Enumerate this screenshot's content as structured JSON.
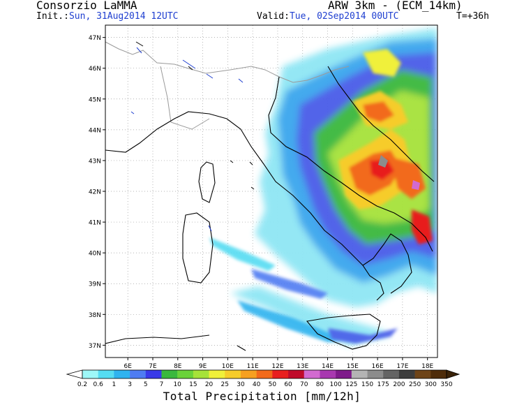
{
  "header": {
    "org": "Consorzio LaMMA",
    "model": "ARW 3km - (ECM_14km)",
    "init_label": "Init.:",
    "init_value": "Sun, 31Aug2014 12UTC",
    "valid_label": "Valid:",
    "valid_value": "Tue, 02Sep2014 00UTC",
    "forecast_step": "T=+36h"
  },
  "map": {
    "lat_labels": [
      "47N",
      "46N",
      "45N",
      "44N",
      "43N",
      "42N",
      "41N",
      "40N",
      "39N",
      "38N",
      "37N"
    ],
    "lon_labels": [
      "6E",
      "7E",
      "8E",
      "9E",
      "10E",
      "11E",
      "12E",
      "13E",
      "14E",
      "15E",
      "16E",
      "17E",
      "18E"
    ],
    "lat_range": [
      36.6,
      47.4
    ],
    "lon_range": [
      5.1,
      18.4
    ],
    "grid": "dotted",
    "background_color": "#ffffff",
    "coast_color": "#000000",
    "border_color": "#9a9a9a"
  },
  "colorbar": {
    "title": "Total Precipitation [mm/12h]",
    "levels": [
      "0.2",
      "0.6",
      "1",
      "3",
      "5",
      "7",
      "10",
      "15",
      "20",
      "25",
      "30",
      "40",
      "50",
      "60",
      "70",
      "80",
      "100",
      "125",
      "150",
      "175",
      "200",
      "250",
      "300",
      "350"
    ],
    "colors": [
      "#9ef8f8",
      "#55dcf2",
      "#2fb3ef",
      "#4f7cf2",
      "#3a3ae8",
      "#3ab83e",
      "#6ad23a",
      "#a6e23a",
      "#f0f03a",
      "#f6cc2a",
      "#f6a020",
      "#f26a1a",
      "#e81f1f",
      "#c00a2a",
      "#d26ad0",
      "#a838b0",
      "#7e1a8a",
      "#b4b4b4",
      "#8c8c8c",
      "#646464",
      "#3c3c3c",
      "#6e4418",
      "#4e2c0a"
    ]
  }
}
